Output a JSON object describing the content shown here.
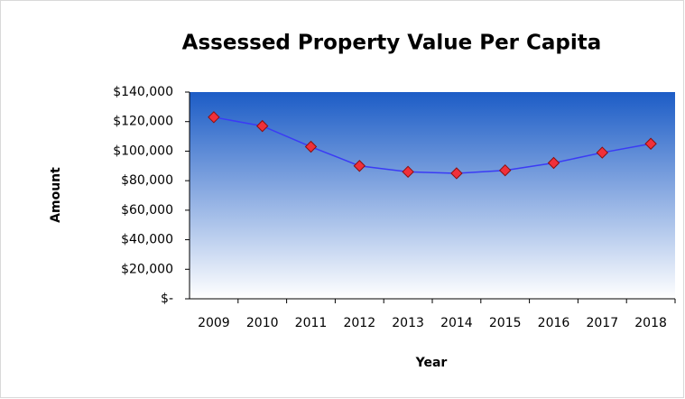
{
  "chart_data": {
    "type": "line",
    "title": "Assessed Property Value Per Capita",
    "x_label": "Year",
    "y_label": "Amount",
    "categories": [
      "2009",
      "2010",
      "2011",
      "2012",
      "2013",
      "2014",
      "2015",
      "2016",
      "2017",
      "2018"
    ],
    "series": [
      {
        "name": "Amount",
        "color": "#3b3bf5",
        "marker_color": "#f0303a",
        "values": [
          123000,
          117000,
          103000,
          90000,
          86000,
          85000,
          87000,
          92000,
          99000,
          105000
        ]
      }
    ],
    "ylim": [
      0,
      140000
    ],
    "yticks": [
      {
        "value": 0,
        "label": "$-"
      },
      {
        "value": 20000,
        "label": "$20,000"
      },
      {
        "value": 40000,
        "label": "$40,000"
      },
      {
        "value": 60000,
        "label": "$60,000"
      },
      {
        "value": 80000,
        "label": "$80,000"
      },
      {
        "value": 100000,
        "label": "$100,000"
      },
      {
        "value": 120000,
        "label": "$120,000"
      },
      {
        "value": 140000,
        "label": "$140,000"
      }
    ],
    "plot_gradient": [
      "#1c5cc6",
      "#ffffff"
    ]
  }
}
